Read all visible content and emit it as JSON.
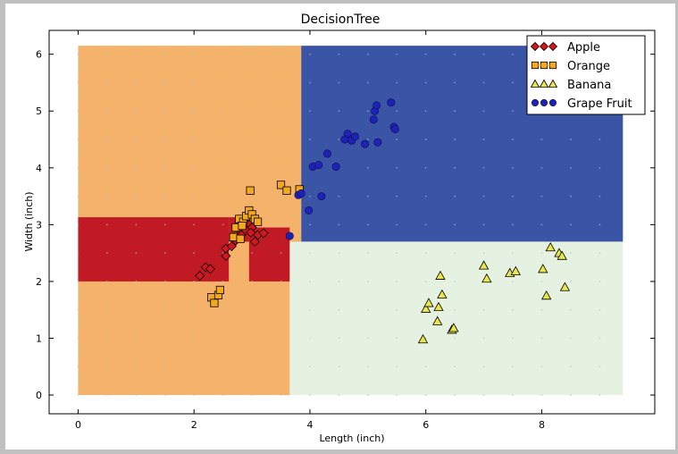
{
  "chart_data": {
    "type": "scatter",
    "title": "DecisionTree",
    "xlabel": "Length (inch)",
    "ylabel": "Width (inch)",
    "xlim": [
      -0.5,
      9.95
    ],
    "ylim": [
      -0.33,
      6.42
    ],
    "xticks": [
      0,
      2,
      4,
      6,
      8
    ],
    "yticks": [
      0,
      1,
      2,
      3,
      4,
      5,
      6
    ],
    "grid": false,
    "legend_position": "top-right",
    "decision_regions": [
      {
        "class": "Orange",
        "color": "#f4b26b",
        "x": [
          0,
          3.85
        ],
        "y": [
          0,
          6.15
        ]
      },
      {
        "class": "Grape Fruit",
        "color": "#3a54a6",
        "x": [
          3.85,
          9.4
        ],
        "y": [
          2.7,
          6.15
        ]
      },
      {
        "class": "Banana",
        "color": "#e6f2e1",
        "x": [
          3.65,
          9.4
        ],
        "y": [
          0,
          2.7
        ]
      },
      {
        "class": "Apple",
        "color": "#c21a25",
        "x": [
          0,
          2.6
        ],
        "y": [
          2.0,
          3.13
        ]
      },
      {
        "class": "Apple",
        "color": "#c21a25",
        "x": [
          2.6,
          2.95
        ],
        "y": [
          2.7,
          3.13
        ]
      },
      {
        "class": "Apple",
        "color": "#c21a25",
        "x": [
          2.95,
          3.65
        ],
        "y": [
          2.0,
          2.95
        ]
      }
    ],
    "series": [
      {
        "name": "Apple",
        "marker": "diamond",
        "color": "#d3171d",
        "points": [
          [
            2.1,
            2.1
          ],
          [
            2.2,
            2.25
          ],
          [
            2.28,
            2.22
          ],
          [
            2.55,
            2.45
          ],
          [
            2.55,
            2.58
          ],
          [
            2.65,
            2.62
          ],
          [
            2.72,
            2.72
          ],
          [
            2.82,
            2.82
          ],
          [
            2.88,
            3.05
          ],
          [
            2.95,
            3.0
          ],
          [
            3.0,
            2.95
          ],
          [
            3.05,
            2.7
          ],
          [
            3.1,
            2.82
          ],
          [
            3.2,
            2.85
          ],
          [
            2.98,
            2.86
          ],
          [
            2.75,
            2.95
          ]
        ]
      },
      {
        "name": "Orange",
        "marker": "square",
        "color": "#f4a81d",
        "points": [
          [
            2.3,
            1.72
          ],
          [
            2.35,
            1.62
          ],
          [
            2.42,
            1.76
          ],
          [
            2.45,
            1.85
          ],
          [
            2.68,
            2.78
          ],
          [
            2.72,
            2.95
          ],
          [
            2.78,
            3.1
          ],
          [
            2.8,
            2.75
          ],
          [
            2.85,
            3.05
          ],
          [
            2.9,
            3.15
          ],
          [
            2.95,
            3.25
          ],
          [
            3.0,
            3.18
          ],
          [
            3.05,
            3.1
          ],
          [
            3.1,
            3.05
          ],
          [
            2.97,
            3.6
          ],
          [
            3.5,
            3.7
          ],
          [
            3.6,
            3.6
          ],
          [
            3.82,
            3.62
          ],
          [
            2.83,
            2.98
          ]
        ]
      },
      {
        "name": "Banana",
        "marker": "triangle",
        "color": "#e8e64a",
        "points": [
          [
            5.95,
            0.98
          ],
          [
            6.0,
            1.52
          ],
          [
            6.05,
            1.62
          ],
          [
            6.2,
            1.3
          ],
          [
            6.22,
            1.55
          ],
          [
            6.25,
            2.1
          ],
          [
            6.28,
            1.77
          ],
          [
            6.45,
            1.15
          ],
          [
            6.48,
            1.18
          ],
          [
            7.0,
            2.28
          ],
          [
            7.05,
            2.05
          ],
          [
            7.45,
            2.15
          ],
          [
            7.55,
            2.18
          ],
          [
            8.02,
            2.22
          ],
          [
            8.08,
            1.75
          ],
          [
            8.15,
            2.6
          ],
          [
            8.3,
            2.5
          ],
          [
            8.35,
            2.45
          ],
          [
            8.4,
            1.9
          ]
        ]
      },
      {
        "name": "Grape Fruit",
        "marker": "circle",
        "color": "#1e22b6",
        "points": [
          [
            3.65,
            2.8
          ],
          [
            3.8,
            3.52
          ],
          [
            3.85,
            3.55
          ],
          [
            3.98,
            3.25
          ],
          [
            4.05,
            4.02
          ],
          [
            4.15,
            4.05
          ],
          [
            4.2,
            3.5
          ],
          [
            4.3,
            4.25
          ],
          [
            4.45,
            4.02
          ],
          [
            4.6,
            4.5
          ],
          [
            4.65,
            4.6
          ],
          [
            4.72,
            4.48
          ],
          [
            4.78,
            4.55
          ],
          [
            4.95,
            4.42
          ],
          [
            5.1,
            4.85
          ],
          [
            5.12,
            5.0
          ],
          [
            5.15,
            5.1
          ],
          [
            5.17,
            4.45
          ],
          [
            5.4,
            5.15
          ],
          [
            5.45,
            4.72
          ],
          [
            5.47,
            4.68
          ]
        ]
      }
    ]
  }
}
